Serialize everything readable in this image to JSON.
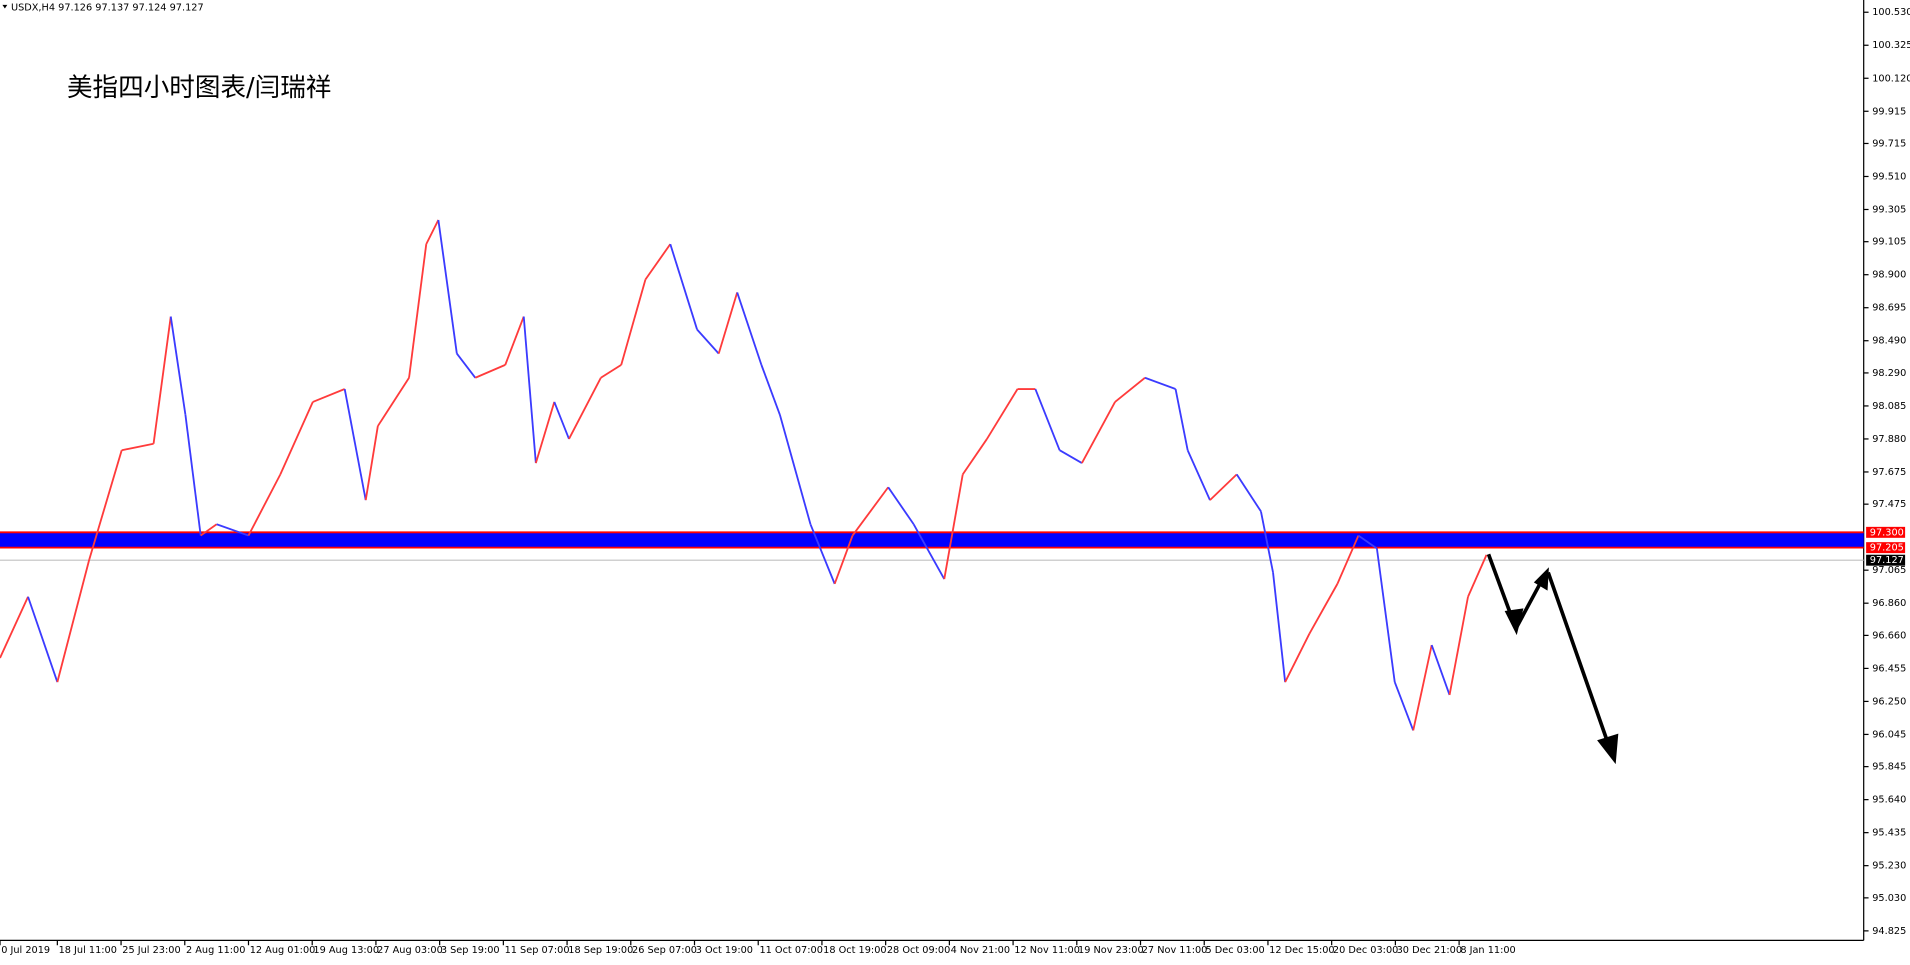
{
  "chart_data": {
    "type": "line",
    "title": "USDX,H4  97.126 97.137 97.124 97.127",
    "annotation": "美指四小时图表/闫瑞祥",
    "up_color": "#ff3b3b",
    "down_color": "#3b3bff",
    "x": [
      0,
      0.44,
      0.9,
      1.4,
      1.91,
      2.41,
      2.68,
      2.91,
      3.15,
      3.4,
      3.9,
      4.4,
      4.91,
      5.41,
      5.74,
      5.93,
      6.42,
      6.69,
      6.88,
      7.17,
      7.46,
      7.93,
      8.22,
      8.41,
      8.7,
      8.93,
      9.43,
      9.75,
      10.13,
      10.52,
      10.94,
      11.28,
      11.57,
      11.95,
      12.24,
      12.72,
      13.1,
      13.38,
      13.94,
      14.34,
      14.82,
      15.11,
      15.49,
      15.97,
      16.25,
      16.63,
      16.98,
      17.5,
      17.97,
      18.45,
      18.64,
      18.99,
      19.41,
      19.79,
      19.98,
      20.17,
      20.55,
      20.99,
      21.32,
      21.61,
      21.89,
      22.18,
      22.47,
      22.75,
      23.04,
      23.33
    ],
    "values": [
      96.52,
      96.9,
      96.37,
      97.13,
      97.81,
      97.85,
      98.64,
      98.03,
      97.28,
      97.35,
      97.28,
      97.66,
      98.11,
      98.19,
      97.5,
      97.96,
      98.26,
      99.09,
      99.24,
      98.41,
      98.26,
      98.34,
      98.64,
      97.73,
      98.11,
      97.88,
      98.26,
      98.34,
      98.87,
      99.09,
      98.56,
      98.41,
      98.79,
      98.34,
      98.03,
      97.35,
      96.98,
      97.28,
      97.58,
      97.35,
      97.01,
      97.66,
      97.88,
      98.19,
      98.19,
      97.81,
      97.73,
      98.11,
      98.26,
      98.19,
      97.81,
      97.5,
      97.66,
      97.43,
      97.05,
      96.37,
      96.67,
      96.98,
      97.28,
      97.2,
      96.37,
      96.07,
      96.6,
      96.29,
      96.9,
      97.16
    ],
    "xlim": [
      0,
      29.25
    ],
    "xticks": [
      {
        "value": 0,
        "label": "0 Jul 2019"
      },
      {
        "value": 0.9,
        "label": "18 Jul 11:00"
      },
      {
        "value": 1.9,
        "label": "25 Jul 23:00"
      },
      {
        "value": 2.9,
        "label": "2 Aug 11:00"
      },
      {
        "value": 3.9,
        "label": "12 Aug 01:00"
      },
      {
        "value": 4.9,
        "label": "19 Aug 13:00"
      },
      {
        "value": 5.9,
        "label": "27 Aug 03:00"
      },
      {
        "value": 6.9,
        "label": "3 Sep 19:00"
      },
      {
        "value": 7.9,
        "label": "11 Sep 07:00"
      },
      {
        "value": 8.9,
        "label": "18 Sep 19:00"
      },
      {
        "value": 9.9,
        "label": "26 Sep 07:00"
      },
      {
        "value": 10.9,
        "label": "3 Oct 19:00"
      },
      {
        "value": 11.9,
        "label": "11 Oct 07:00"
      },
      {
        "value": 12.9,
        "label": "18 Oct 19:00"
      },
      {
        "value": 13.9,
        "label": "28 Oct 09:00"
      },
      {
        "value": 14.9,
        "label": "4 Nov 21:00"
      },
      {
        "value": 15.9,
        "label": "12 Nov 11:00"
      },
      {
        "value": 16.9,
        "label": "19 Nov 23:00"
      },
      {
        "value": 17.9,
        "label": "27 Nov 11:00"
      },
      {
        "value": 18.9,
        "label": "5 Dec 03:00"
      },
      {
        "value": 19.9,
        "label": "12 Dec 15:00"
      },
      {
        "value": 20.9,
        "label": "20 Dec 03:00"
      },
      {
        "value": 21.9,
        "label": "30 Dec 21:00"
      },
      {
        "value": 22.9,
        "label": "8 Jan 11:00"
      }
    ],
    "ylim": [
      94.766,
      100.606
    ],
    "yticks": [
      {
        "value": 100.53,
        "label": "100.530"
      },
      {
        "value": 100.325,
        "label": "100.325"
      },
      {
        "value": 100.12,
        "label": "100.120"
      },
      {
        "value": 99.915,
        "label": "99.915"
      },
      {
        "value": 99.715,
        "label": "99.715"
      },
      {
        "value": 99.51,
        "label": "99.510"
      },
      {
        "value": 99.305,
        "label": "99.305"
      },
      {
        "value": 99.105,
        "label": "99.105"
      },
      {
        "value": 98.9,
        "label": "98.900"
      },
      {
        "value": 98.695,
        "label": "98.695"
      },
      {
        "value": 98.49,
        "label": "98.490"
      },
      {
        "value": 98.29,
        "label": "98.290"
      },
      {
        "value": 98.085,
        "label": "98.085"
      },
      {
        "value": 97.88,
        "label": "97.880"
      },
      {
        "value": 97.675,
        "label": "97.675"
      },
      {
        "value": 97.475,
        "label": "97.475"
      },
      {
        "value": 97.065,
        "label": "97.065"
      },
      {
        "value": 96.86,
        "label": "96.860"
      },
      {
        "value": 96.66,
        "label": "96.660"
      },
      {
        "value": 96.455,
        "label": "96.455"
      },
      {
        "value": 96.25,
        "label": "96.250"
      },
      {
        "value": 96.045,
        "label": "96.045"
      },
      {
        "value": 95.845,
        "label": "95.845"
      },
      {
        "value": 95.64,
        "label": "95.640"
      },
      {
        "value": 95.435,
        "label": "95.435"
      },
      {
        "value": 95.23,
        "label": "95.230"
      },
      {
        "value": 95.03,
        "label": "95.030"
      },
      {
        "value": 94.825,
        "label": "94.825"
      }
    ],
    "zone": {
      "color": "#0000ff",
      "edge_color": "#ff0000"
    },
    "price_tags": [
      {
        "value": 97.3,
        "label": "97.300",
        "color": "#ff0000"
      },
      {
        "value": 97.205,
        "label": "97.205",
        "color": "#ff0000"
      },
      {
        "value": 97.127,
        "label": "97.127",
        "color": "#000000"
      }
    ]
  }
}
